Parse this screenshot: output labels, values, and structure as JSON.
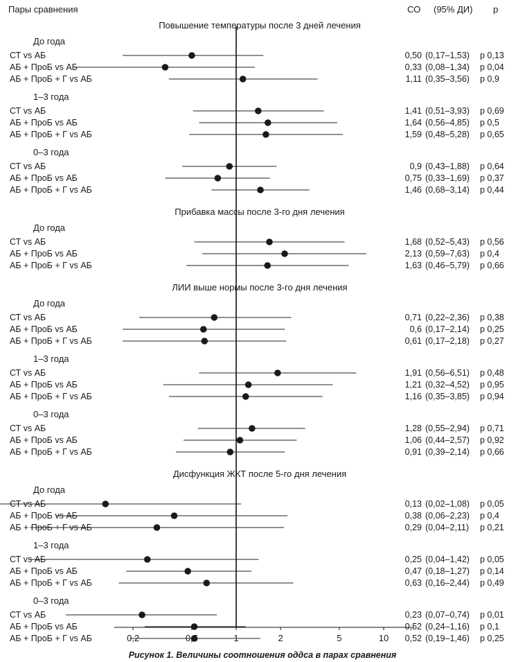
{
  "header": {
    "pairs_label": "Пары сравнения",
    "or_label": "СО",
    "ci_label": "(95% ДИ)",
    "p_label": "р"
  },
  "caption": "Рисунок 1. Величины соотношения оддса в парах сравнения",
  "chart_data": {
    "type": "forest",
    "xscale": "log",
    "reference_line": 1,
    "x_ticks": [
      0.2,
      0.5,
      1,
      2,
      5,
      10
    ],
    "x_tick_labels": [
      "0,2",
      "0,5",
      "1",
      "2",
      "5",
      "10"
    ],
    "sections": [
      {
        "title": "Повышение температуры после 3 дней лечения",
        "groups": [
          {
            "label": "До года",
            "rows": [
              {
                "pair": "СТ vs АБ",
                "or": 0.5,
                "lo": 0.17,
                "hi": 1.53,
                "or_text": "0,50",
                "ci_text": "(0,17–1,53)",
                "p_text": "р 0,13"
              },
              {
                "pair": "АБ + ПроБ vs АБ",
                "or": 0.33,
                "lo": 0.08,
                "hi": 1.34,
                "or_text": "0,33",
                "ci_text": "(0,08–1,34)",
                "p_text": "р 0,04"
              },
              {
                "pair": "АБ + ПроБ + Г vs АБ",
                "or": 1.11,
                "lo": 0.35,
                "hi": 3.56,
                "or_text": "1,11",
                "ci_text": "(0,35–3,56)",
                "p_text": "р 0,9"
              }
            ]
          },
          {
            "label": "1–3 года",
            "rows": [
              {
                "pair": "СТ vs АБ",
                "or": 1.41,
                "lo": 0.51,
                "hi": 3.93,
                "or_text": "1,41",
                "ci_text": "(0,51–3,93)",
                "p_text": "р 0,69"
              },
              {
                "pair": "АБ + ПроБ vs АБ",
                "or": 1.64,
                "lo": 0.56,
                "hi": 4.85,
                "or_text": "1,64",
                "ci_text": "(0,56–4,85)",
                "p_text": "р 0,5"
              },
              {
                "pair": "АБ + ПроБ + Г vs АБ",
                "or": 1.59,
                "lo": 0.48,
                "hi": 5.28,
                "or_text": "1,59",
                "ci_text": "(0,48–5,28)",
                "p_text": "р 0,65"
              }
            ]
          },
          {
            "label": "0–3 года",
            "rows": [
              {
                "pair": "СТ vs АБ",
                "or": 0.9,
                "lo": 0.43,
                "hi": 1.88,
                "or_text": "0,9",
                "ci_text": "(0,43–1,88)",
                "p_text": "р 0,64"
              },
              {
                "pair": "АБ + ПроБ vs АБ",
                "or": 0.75,
                "lo": 0.33,
                "hi": 1.69,
                "or_text": "0,75",
                "ci_text": "(0,33–1,69)",
                "p_text": "р 0,37"
              },
              {
                "pair": "АБ + ПроБ + Г vs АБ",
                "or": 1.46,
                "lo": 0.68,
                "hi": 3.14,
                "or_text": "1,46",
                "ci_text": "(0,68–3,14)",
                "p_text": "р 0,44"
              }
            ]
          }
        ]
      },
      {
        "title": "Прибавка массы после 3-го дня лечения",
        "groups": [
          {
            "label": "До года",
            "rows": [
              {
                "pair": "СТ vs АБ",
                "or": 1.68,
                "lo": 0.52,
                "hi": 5.43,
                "or_text": "1,68",
                "ci_text": "(0,52–5,43)",
                "p_text": "р 0,56"
              },
              {
                "pair": "АБ + ПроБ vs АБ",
                "or": 2.13,
                "lo": 0.59,
                "hi": 7.63,
                "or_text": "2,13",
                "ci_text": "(0,59–7,63)",
                "p_text": "р 0,4"
              },
              {
                "pair": "АБ + ПроБ + Г vs АБ",
                "or": 1.63,
                "lo": 0.46,
                "hi": 5.79,
                "or_text": "1,63",
                "ci_text": "(0,46–5,79)",
                "p_text": "р 0,66"
              }
            ]
          }
        ]
      },
      {
        "title": "ЛИИ выше нормы после 3-го дня лечения",
        "groups": [
          {
            "label": "До года",
            "rows": [
              {
                "pair": "СТ vs АБ",
                "or": 0.71,
                "lo": 0.22,
                "hi": 2.36,
                "or_text": "0,71",
                "ci_text": "(0,22–2,36)",
                "p_text": "р 0,38"
              },
              {
                "pair": "АБ + ПроБ vs АБ",
                "or": 0.6,
                "lo": 0.17,
                "hi": 2.14,
                "or_text": "0,6",
                "ci_text": "(0,17–2,14)",
                "p_text": "р 0,25"
              },
              {
                "pair": "АБ + ПроБ + Г vs АБ",
                "or": 0.61,
                "lo": 0.17,
                "hi": 2.18,
                "or_text": "0,61",
                "ci_text": "(0,17–2,18)",
                "p_text": "р 0,27"
              }
            ]
          },
          {
            "label": "1–3 года",
            "rows": [
              {
                "pair": "СТ vs АБ",
                "or": 1.91,
                "lo": 0.56,
                "hi": 6.51,
                "or_text": "1,91",
                "ci_text": "(0,56–6,51)",
                "p_text": "р 0,48"
              },
              {
                "pair": "АБ + ПроБ vs АБ",
                "or": 1.21,
                "lo": 0.32,
                "hi": 4.52,
                "or_text": "1,21",
                "ci_text": "(0,32–4,52)",
                "p_text": "р 0,95"
              },
              {
                "pair": "АБ + ПроБ + Г vs АБ",
                "or": 1.16,
                "lo": 0.35,
                "hi": 3.85,
                "or_text": "1,16",
                "ci_text": "(0,35–3,85)",
                "p_text": "р 0,94"
              }
            ]
          },
          {
            "label": "0–3 года",
            "rows": [
              {
                "pair": "СТ vs АБ",
                "or": 1.28,
                "lo": 0.55,
                "hi": 2.94,
                "or_text": "1,28",
                "ci_text": "(0,55–2,94)",
                "p_text": "р 0,71"
              },
              {
                "pair": "АБ + ПроБ vs АБ",
                "or": 1.06,
                "lo": 0.44,
                "hi": 2.57,
                "or_text": "1,06",
                "ci_text": "(0,44–2,57)",
                "p_text": "р 0,92"
              },
              {
                "pair": "АБ + ПроБ + Г vs АБ",
                "or": 0.91,
                "lo": 0.39,
                "hi": 2.14,
                "or_text": "0,91",
                "ci_text": "(0,39–2,14)",
                "p_text": "р 0,66"
              }
            ]
          }
        ]
      },
      {
        "title": "Дисфункция ЖКТ после 5-го дня лечения",
        "groups": [
          {
            "label": "До года",
            "rows": [
              {
                "pair": "СТ vs АБ",
                "or": 0.13,
                "lo": 0.02,
                "hi": 1.08,
                "or_text": "0,13",
                "ci_text": "(0,02–1,08)",
                "p_text": "р 0,05"
              },
              {
                "pair": "АБ + ПроБ vs АБ",
                "or": 0.38,
                "lo": 0.06,
                "hi": 2.23,
                "or_text": "0,38",
                "ci_text": "(0,06–2,23)",
                "p_text": "р 0,4"
              },
              {
                "pair": "АБ + ПроБ + Г vs АБ",
                "or": 0.29,
                "lo": 0.04,
                "hi": 2.11,
                "or_text": "0,29",
                "ci_text": "(0,04–2,11)",
                "p_text": "р 0,21"
              }
            ]
          },
          {
            "label": "1–3 года",
            "rows": [
              {
                "pair": "СТ vs АБ",
                "or": 0.25,
                "lo": 0.04,
                "hi": 1.42,
                "or_text": "0,25",
                "ci_text": "(0,04–1,42)",
                "p_text": "р 0,05"
              },
              {
                "pair": "АБ + ПроБ vs АБ",
                "or": 0.47,
                "lo": 0.18,
                "hi": 1.27,
                "or_text": "0,47",
                "ci_text": "(0,18–1,27)",
                "p_text": "р 0,14"
              },
              {
                "pair": "АБ + ПроБ + Г vs АБ",
                "or": 0.63,
                "lo": 0.16,
                "hi": 2.44,
                "or_text": "0,63",
                "ci_text": "(0,16–2,44)",
                "p_text": "р 0,49"
              }
            ]
          },
          {
            "label": "0–3 года",
            "rows": [
              {
                "pair": "СТ vs АБ",
                "or": 0.23,
                "lo": 0.07,
                "hi": 0.74,
                "or_text": "0,23",
                "ci_text": "(0,07–0,74)",
                "p_text": "р 0,01"
              },
              {
                "pair": "АБ + ПроБ vs АБ",
                "or": 0.52,
                "lo": 0.24,
                "hi": 1.16,
                "or_text": "0,52",
                "ci_text": "(0,24–1,16)",
                "p_text": "р 0,1"
              },
              {
                "pair": "АБ + ПроБ + Г vs АБ",
                "or": 0.52,
                "lo": 0.19,
                "hi": 1.46,
                "or_text": "0,52",
                "ci_text": "(0,19–1,46)",
                "p_text": "р 0,25"
              }
            ]
          }
        ]
      }
    ]
  }
}
